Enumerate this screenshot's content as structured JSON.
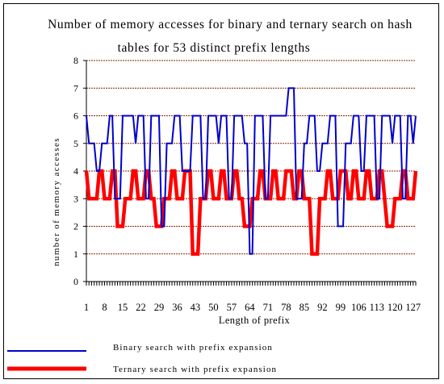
{
  "chart_data": {
    "type": "line",
    "title_line1": "Number of memory accesses for binary and ternary search on hash",
    "title_line2": "tables for 53 distinct prefix lengths",
    "xlabel": "Length of prefix",
    "ylabel": "number of memory accesses",
    "ylim": [
      0,
      8
    ],
    "yticks": [
      "0",
      "1",
      "2",
      "3",
      "4",
      "5",
      "6",
      "7",
      "8"
    ],
    "xlim": [
      1,
      128
    ],
    "xtick_values": [
      1,
      8,
      15,
      22,
      29,
      36,
      43,
      50,
      57,
      64,
      71,
      78,
      85,
      92,
      99,
      106,
      113,
      120,
      127
    ],
    "xtick_labels": [
      "1",
      "8",
      "15",
      "22",
      "29",
      "36",
      "43",
      "50",
      "57",
      "64",
      "71",
      "78",
      "85",
      "92",
      "99",
      "106",
      "113",
      "120",
      "127"
    ],
    "grid": "horizontal dashed",
    "legend_position": "bottom",
    "series": [
      {
        "name": "Binary search with prefix expansion",
        "color": "#0000cc",
        "x": [
          1,
          2,
          3,
          4,
          5,
          6,
          7,
          8,
          9,
          10,
          11,
          12,
          13,
          14,
          15,
          16,
          17,
          18,
          19,
          20,
          21,
          22,
          23,
          24,
          25,
          26,
          27,
          28,
          29,
          30,
          31,
          32,
          33,
          34,
          35,
          36,
          37,
          38,
          39,
          40,
          41,
          42,
          43,
          44,
          45,
          46,
          47,
          48,
          49,
          50,
          51,
          52,
          53,
          54,
          55,
          56,
          57,
          58,
          59,
          60,
          61,
          62,
          63,
          64,
          65,
          66,
          67,
          68,
          69,
          70,
          71,
          72,
          73,
          74,
          75,
          76,
          77,
          78,
          79,
          80,
          81,
          82,
          83,
          84,
          85,
          86,
          87,
          88,
          89,
          90,
          91,
          92,
          93,
          94,
          95,
          96,
          97,
          98,
          99,
          100,
          101,
          102,
          103,
          104,
          105,
          106,
          107,
          108,
          109,
          110,
          111,
          112,
          113,
          114,
          115,
          116,
          117,
          118,
          119,
          120,
          121,
          122,
          123,
          124,
          125,
          126,
          127,
          128
        ],
        "values": [
          6,
          5,
          5,
          5,
          4,
          4,
          5,
          5,
          5,
          6,
          6,
          3,
          3,
          3,
          6,
          6,
          6,
          6,
          6,
          5,
          6,
          6,
          6,
          3,
          3,
          6,
          6,
          6,
          6,
          2,
          2,
          5,
          5,
          5,
          6,
          6,
          6,
          4,
          4,
          4,
          4,
          6,
          6,
          6,
          6,
          3,
          3,
          6,
          6,
          6,
          6,
          5,
          6,
          6,
          6,
          3,
          3,
          6,
          6,
          6,
          6,
          5,
          5,
          1,
          1,
          6,
          6,
          6,
          6,
          3,
          3,
          6,
          6,
          6,
          6,
          6,
          6,
          6,
          7,
          7,
          7,
          3,
          3,
          3,
          5,
          5,
          6,
          6,
          6,
          4,
          4,
          5,
          5,
          5,
          6,
          6,
          6,
          2,
          2,
          2,
          5,
          5,
          5,
          6,
          6,
          6,
          4,
          4,
          6,
          6,
          6,
          6,
          3,
          3,
          6,
          6,
          6,
          6,
          5,
          6,
          6,
          6,
          3,
          3,
          6,
          6,
          5,
          6
        ]
      },
      {
        "name": "Ternary search with prefix expansion",
        "color": "#ff0000",
        "x": [
          1,
          2,
          3,
          4,
          5,
          6,
          7,
          8,
          9,
          10,
          11,
          12,
          13,
          14,
          15,
          16,
          17,
          18,
          19,
          20,
          21,
          22,
          23,
          24,
          25,
          26,
          27,
          28,
          29,
          30,
          31,
          32,
          33,
          34,
          35,
          36,
          37,
          38,
          39,
          40,
          41,
          42,
          43,
          44,
          45,
          46,
          47,
          48,
          49,
          50,
          51,
          52,
          53,
          54,
          55,
          56,
          57,
          58,
          59,
          60,
          61,
          62,
          63,
          64,
          65,
          66,
          67,
          68,
          69,
          70,
          71,
          72,
          73,
          74,
          75,
          76,
          77,
          78,
          79,
          80,
          81,
          82,
          83,
          84,
          85,
          86,
          87,
          88,
          89,
          90,
          91,
          92,
          93,
          94,
          95,
          96,
          97,
          98,
          99,
          100,
          101,
          102,
          103,
          104,
          105,
          106,
          107,
          108,
          109,
          110,
          111,
          112,
          113,
          114,
          115,
          116,
          117,
          118,
          119,
          120,
          121,
          122,
          123,
          124,
          125,
          126,
          127,
          128
        ],
        "values": [
          4,
          3,
          3,
          3,
          3,
          4,
          4,
          3,
          3,
          3,
          4,
          4,
          2,
          2,
          2,
          3,
          3,
          3,
          4,
          4,
          3,
          3,
          3,
          4,
          4,
          3,
          3,
          2,
          2,
          2,
          3,
          3,
          3,
          4,
          4,
          3,
          3,
          3,
          4,
          4,
          4,
          1,
          1,
          1,
          3,
          3,
          3,
          4,
          4,
          3,
          3,
          3,
          4,
          4,
          3,
          3,
          3,
          4,
          4,
          3,
          3,
          2,
          2,
          2,
          3,
          3,
          3,
          4,
          4,
          3,
          3,
          3,
          4,
          4,
          3,
          3,
          3,
          4,
          4,
          4,
          3,
          3,
          4,
          4,
          3,
          3,
          3,
          1,
          1,
          1,
          3,
          3,
          3,
          4,
          4,
          3,
          3,
          3,
          4,
          4,
          4,
          3,
          3,
          4,
          4,
          3,
          3,
          3,
          4,
          4,
          3,
          3,
          3,
          4,
          4,
          3,
          2,
          2,
          2,
          3,
          3,
          3,
          4,
          4,
          3,
          3,
          3,
          4
        ]
      }
    ]
  }
}
